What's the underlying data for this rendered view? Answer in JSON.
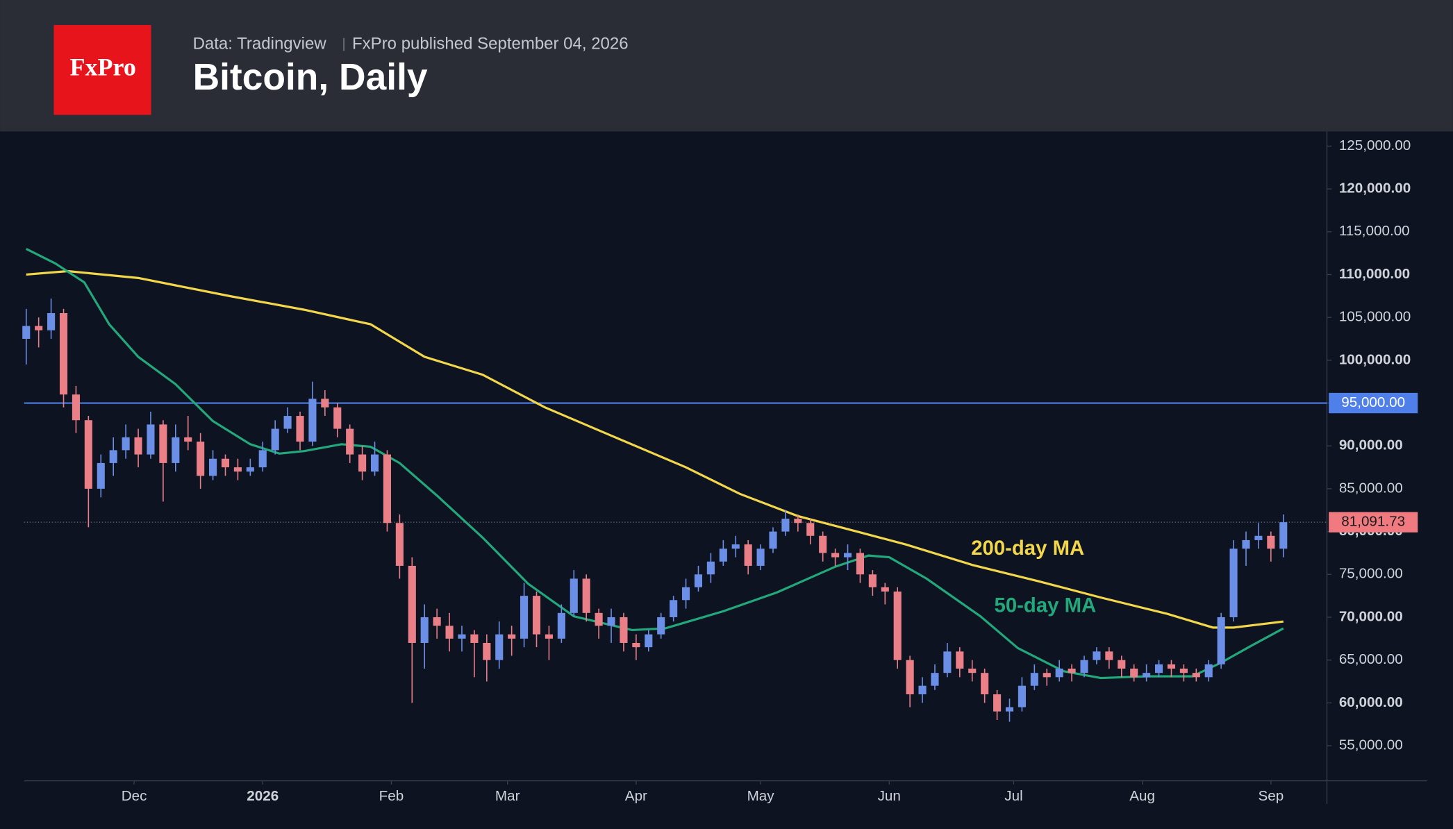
{
  "chart_data": {
    "type": "candlestick",
    "logo": "FxPro",
    "source": "Data: Tradingview",
    "published": "FxPro published September 04, 2026",
    "title": "Bitcoin, Daily",
    "up_color": "#6b8fe6",
    "down_color": "#ea7f87",
    "x": [
      0,
      3,
      6,
      9,
      12,
      15,
      18,
      21,
      24,
      27,
      30,
      33,
      36,
      39,
      42,
      45,
      48,
      51,
      54,
      57,
      60,
      63,
      66,
      69,
      72,
      75,
      78,
      81,
      84,
      87,
      90,
      93,
      96,
      99,
      102,
      105,
      108,
      111,
      114,
      117,
      120,
      123,
      126,
      129,
      132,
      135,
      138,
      141,
      144,
      147,
      150,
      153,
      156,
      159,
      162,
      165,
      168,
      171,
      174,
      177,
      180,
      183,
      186,
      189,
      192,
      195,
      198,
      201,
      204,
      207,
      210,
      213,
      216,
      219,
      222,
      225,
      228,
      231,
      234,
      237,
      240,
      243,
      246,
      249,
      252,
      255,
      258,
      261,
      264,
      267,
      270,
      273,
      276,
      279,
      282,
      285,
      288,
      291,
      294,
      297,
      300,
      303
    ],
    "candles": [
      [
        102500,
        106000,
        99500,
        104000
      ],
      [
        104000,
        105000,
        101500,
        103500
      ],
      [
        103500,
        107200,
        102500,
        105500
      ],
      [
        105500,
        106000,
        94500,
        96000
      ],
      [
        96000,
        97000,
        91500,
        93000
      ],
      [
        93000,
        93500,
        80500,
        85000
      ],
      [
        85000,
        89000,
        84000,
        88000
      ],
      [
        88000,
        91000,
        86500,
        89500
      ],
      [
        89500,
        92500,
        88500,
        91000
      ],
      [
        91000,
        92000,
        87500,
        89000
      ],
      [
        89000,
        94000,
        88500,
        92500
      ],
      [
        92500,
        93000,
        83500,
        88000
      ],
      [
        88000,
        92500,
        87000,
        91000
      ],
      [
        91000,
        93500,
        89500,
        90500
      ],
      [
        90500,
        91500,
        85000,
        86500
      ],
      [
        86500,
        89500,
        86000,
        88500
      ],
      [
        88500,
        89000,
        86500,
        87500
      ],
      [
        87500,
        88500,
        86000,
        87000
      ],
      [
        87000,
        88500,
        86500,
        87500
      ],
      [
        87500,
        90500,
        87000,
        89500
      ],
      [
        89500,
        93000,
        89000,
        92000
      ],
      [
        92000,
        94500,
        91500,
        93500
      ],
      [
        93500,
        94000,
        89500,
        90500
      ],
      [
        90500,
        97500,
        90000,
        95500
      ],
      [
        95500,
        96500,
        93500,
        94500
      ],
      [
        94500,
        95000,
        91000,
        92000
      ],
      [
        92000,
        92500,
        88000,
        89000
      ],
      [
        89000,
        90000,
        86000,
        87000
      ],
      [
        87000,
        90500,
        86500,
        89000
      ],
      [
        89000,
        89500,
        80000,
        81000
      ],
      [
        81000,
        82000,
        74500,
        76000
      ],
      [
        76000,
        77000,
        60000,
        67000
      ],
      [
        67000,
        71500,
        64000,
        70000
      ],
      [
        70000,
        71000,
        67500,
        69000
      ],
      [
        69000,
        70500,
        66000,
        67500
      ],
      [
        67500,
        69000,
        66000,
        68000
      ],
      [
        68000,
        68500,
        63000,
        67000
      ],
      [
        67000,
        68000,
        62500,
        65000
      ],
      [
        65000,
        69500,
        64000,
        68000
      ],
      [
        68000,
        69000,
        65500,
        67500
      ],
      [
        67500,
        74000,
        66500,
        72500
      ],
      [
        72500,
        73000,
        66500,
        68000
      ],
      [
        68000,
        69000,
        65000,
        67500
      ],
      [
        67500,
        71500,
        67000,
        70500
      ],
      [
        70500,
        75500,
        70000,
        74500
      ],
      [
        74500,
        75000,
        69500,
        70500
      ],
      [
        70500,
        71000,
        67500,
        69000
      ],
      [
        69000,
        71000,
        67000,
        70000
      ],
      [
        70000,
        70500,
        66000,
        67000
      ],
      [
        67000,
        68000,
        65000,
        66500
      ],
      [
        66500,
        68500,
        66000,
        68000
      ],
      [
        68000,
        70500,
        67500,
        70000
      ],
      [
        70000,
        72500,
        69500,
        72000
      ],
      [
        72000,
        74500,
        71000,
        73500
      ],
      [
        73500,
        76000,
        73000,
        75000
      ],
      [
        75000,
        77500,
        74000,
        76500
      ],
      [
        76500,
        79000,
        76000,
        78000
      ],
      [
        78000,
        79500,
        77000,
        78500
      ],
      [
        78500,
        79000,
        75000,
        76000
      ],
      [
        76000,
        78500,
        75500,
        78000
      ],
      [
        78000,
        80500,
        77500,
        80000
      ],
      [
        80000,
        82500,
        79500,
        81500
      ],
      [
        81500,
        82000,
        80000,
        81000
      ],
      [
        81000,
        81500,
        78500,
        79500
      ],
      [
        79500,
        80000,
        76500,
        77500
      ],
      [
        77500,
        78000,
        76000,
        77000
      ],
      [
        77000,
        78500,
        75500,
        77500
      ],
      [
        77500,
        78000,
        74000,
        75000
      ],
      [
        75000,
        75500,
        72500,
        73500
      ],
      [
        73500,
        74000,
        71500,
        73000
      ],
      [
        73000,
        73500,
        64000,
        65000
      ],
      [
        65000,
        65500,
        59500,
        61000
      ],
      [
        61000,
        63000,
        60000,
        62000
      ],
      [
        62000,
        64500,
        61500,
        63500
      ],
      [
        63500,
        67000,
        63000,
        66000
      ],
      [
        66000,
        66500,
        63000,
        64000
      ],
      [
        64000,
        65000,
        62500,
        63500
      ],
      [
        63500,
        64000,
        60000,
        61000
      ],
      [
        61000,
        61500,
        58000,
        59000
      ],
      [
        59000,
        60500,
        57800,
        59500
      ],
      [
        59500,
        63000,
        59000,
        62000
      ],
      [
        62000,
        64500,
        61500,
        63500
      ],
      [
        63500,
        64000,
        62000,
        63000
      ],
      [
        63000,
        65000,
        62500,
        64000
      ],
      [
        64000,
        64500,
        62500,
        63500
      ],
      [
        63500,
        65500,
        63000,
        65000
      ],
      [
        65000,
        66500,
        64500,
        66000
      ],
      [
        66000,
        66500,
        64000,
        65000
      ],
      [
        65000,
        65500,
        63000,
        64000
      ],
      [
        64000,
        64500,
        62500,
        63000
      ],
      [
        63000,
        64500,
        62500,
        63500
      ],
      [
        63500,
        65000,
        63000,
        64500
      ],
      [
        64500,
        65000,
        63000,
        64000
      ],
      [
        64000,
        64500,
        62500,
        63500
      ],
      [
        63500,
        64000,
        62500,
        63000
      ],
      [
        63000,
        65000,
        62500,
        64500
      ],
      [
        64500,
        70500,
        64000,
        70000
      ],
      [
        70000,
        79000,
        69500,
        78000
      ],
      [
        78000,
        80000,
        76000,
        79000
      ],
      [
        79000,
        81000,
        78000,
        79500
      ],
      [
        79500,
        80000,
        76500,
        78000
      ],
      [
        78000,
        82000,
        77000,
        81091.73
      ]
    ],
    "series": [
      {
        "name": "200-day MA",
        "color": "#f2d64b",
        "x": [
          0,
          10,
          27,
          49,
          67,
          83,
          96,
          110,
          125,
          141,
          159,
          172,
          186,
          201,
          212,
          228,
          244,
          259,
          275,
          286,
          291,
          303
        ],
        "values": [
          110000,
          110400,
          109600,
          107500,
          105900,
          104200,
          100400,
          98300,
          94500,
          91200,
          87500,
          84400,
          81800,
          79900,
          78500,
          76100,
          74200,
          72300,
          70400,
          68800,
          68800,
          69500
        ]
      },
      {
        "name": "50-day MA",
        "color": "#22a87a",
        "x": [
          0,
          7,
          14,
          20,
          27,
          36,
          45,
          54,
          61,
          67,
          76,
          83,
          90,
          99,
          110,
          121,
          132,
          146,
          154,
          168,
          181,
          195,
          203,
          208,
          217,
          230,
          239,
          250,
          259,
          270,
          281,
          288,
          295,
          303
        ],
        "values": [
          113000,
          111300,
          109100,
          104200,
          100400,
          97200,
          92900,
          90200,
          89100,
          89400,
          90200,
          89900,
          88000,
          84200,
          79300,
          73900,
          70100,
          68500,
          68700,
          70700,
          72900,
          75900,
          77200,
          77000,
          74500,
          70100,
          66400,
          63700,
          62900,
          63100,
          63100,
          64700,
          66600,
          68700
        ]
      }
    ],
    "level": {
      "value": 95000,
      "label": "95,000.00",
      "color": "#4f7fe8"
    },
    "last_price": {
      "value": 81091.73,
      "label": "81,091.73",
      "color": "#f07a80"
    },
    "xlim": [
      -0.5,
      313.5
    ],
    "xticks": [
      {
        "value": 26,
        "label": "Dec"
      },
      {
        "value": 57,
        "label": "2026"
      },
      {
        "value": 88,
        "label": "Feb"
      },
      {
        "value": 116,
        "label": "Mar"
      },
      {
        "value": 147,
        "label": "Apr"
      },
      {
        "value": 177,
        "label": "May"
      },
      {
        "value": 208,
        "label": "Jun"
      },
      {
        "value": 238,
        "label": "Jul"
      },
      {
        "value": 269,
        "label": "Aug"
      },
      {
        "value": 300,
        "label": "Sep"
      }
    ],
    "ylim": [
      50900,
      126700
    ],
    "yticks": [
      {
        "value": 55000,
        "label": "55,000.00"
      },
      {
        "value": 60000,
        "label": "60,000.00"
      },
      {
        "value": 65000,
        "label": "65,000.00"
      },
      {
        "value": 70000,
        "label": "70,000.00"
      },
      {
        "value": 75000,
        "label": "75,000.00"
      },
      {
        "value": 80000,
        "label": "80,000.00"
      },
      {
        "value": 85000,
        "label": "85,000.00"
      },
      {
        "value": 90000,
        "label": "90,000.00"
      },
      {
        "value": 95000,
        "label": "95,000.00"
      },
      {
        "value": 100000,
        "label": "100,000.00"
      },
      {
        "value": 105000,
        "label": "105,000.00"
      },
      {
        "value": 110000,
        "label": "110,000.00"
      },
      {
        "value": 115000,
        "label": "115,000.00"
      },
      {
        "value": 120000,
        "label": "120,000.00"
      },
      {
        "value": 125000,
        "label": "125,000.00"
      }
    ]
  }
}
